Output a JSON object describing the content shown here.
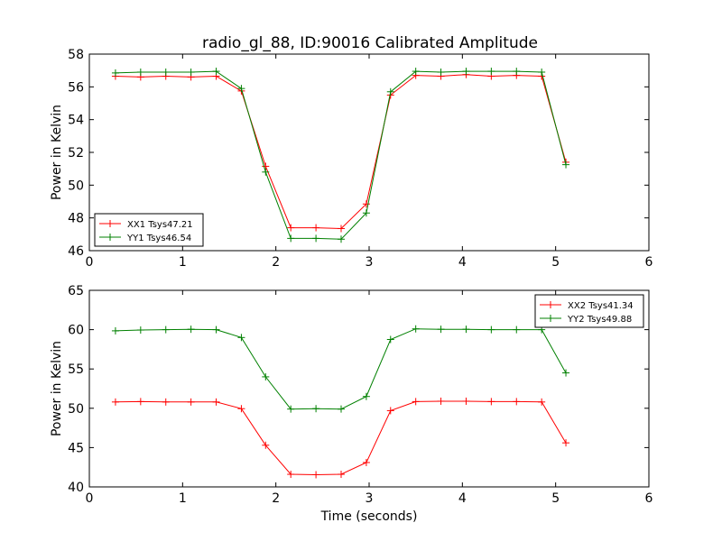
{
  "figure": {
    "title": "radio_gl_88, ID:90016 Calibrated Amplitude",
    "background": "#ffffff"
  },
  "chart_data": [
    {
      "type": "line",
      "xlabel": "",
      "ylabel": "Power in Kelvin",
      "xlim": [
        0,
        6
      ],
      "ylim": [
        46,
        58
      ],
      "xticks": [
        0,
        1,
        2,
        3,
        4,
        5,
        6
      ],
      "yticks": [
        46,
        48,
        50,
        52,
        54,
        56,
        58
      ],
      "grid": false,
      "legend": "lower-left",
      "x": [
        0.28,
        0.55,
        0.82,
        1.09,
        1.36,
        1.63,
        1.89,
        2.16,
        2.43,
        2.7,
        2.97,
        3.23,
        3.5,
        3.77,
        4.04,
        4.31,
        4.58,
        4.85,
        5.11
      ],
      "series": [
        {
          "name": "XX1 Tsys47.21",
          "color": "#ff0000",
          "marker": "plus",
          "values": [
            56.65,
            56.6,
            56.65,
            56.6,
            56.65,
            55.75,
            51.15,
            47.4,
            47.4,
            47.35,
            48.85,
            55.5,
            56.7,
            56.65,
            56.75,
            56.65,
            56.7,
            56.65,
            51.4
          ]
        },
        {
          "name": "YY1 Tsys46.54",
          "color": "#008000",
          "marker": "plus",
          "values": [
            56.85,
            56.9,
            56.9,
            56.9,
            56.95,
            55.9,
            50.8,
            46.75,
            46.75,
            46.7,
            48.3,
            55.7,
            56.95,
            56.9,
            56.95,
            56.95,
            56.95,
            56.9,
            51.25
          ]
        }
      ]
    },
    {
      "type": "line",
      "xlabel": "Time (seconds)",
      "ylabel": "Power in Kelvin",
      "xlim": [
        0,
        6
      ],
      "ylim": [
        40,
        65
      ],
      "xticks": [
        0,
        1,
        2,
        3,
        4,
        5,
        6
      ],
      "yticks": [
        40,
        45,
        50,
        55,
        60,
        65
      ],
      "grid": false,
      "legend": "upper-right",
      "x": [
        0.28,
        0.55,
        0.82,
        1.09,
        1.36,
        1.63,
        1.89,
        2.16,
        2.43,
        2.7,
        2.97,
        3.23,
        3.5,
        3.77,
        4.04,
        4.31,
        4.58,
        4.85,
        5.11
      ],
      "series": [
        {
          "name": "XX2 Tsys41.34",
          "color": "#ff0000",
          "marker": "plus",
          "values": [
            50.8,
            50.85,
            50.8,
            50.8,
            50.8,
            49.95,
            45.3,
            41.6,
            41.55,
            41.6,
            43.1,
            49.7,
            50.85,
            50.9,
            50.9,
            50.85,
            50.85,
            50.8,
            45.6
          ]
        },
        {
          "name": "YY2 Tsys49.88",
          "color": "#008000",
          "marker": "plus",
          "values": [
            59.85,
            59.95,
            60.0,
            60.05,
            60.0,
            59.0,
            54.0,
            49.9,
            49.95,
            49.9,
            51.5,
            58.75,
            60.1,
            60.05,
            60.05,
            60.0,
            60.0,
            60.0,
            54.5
          ]
        }
      ]
    }
  ]
}
